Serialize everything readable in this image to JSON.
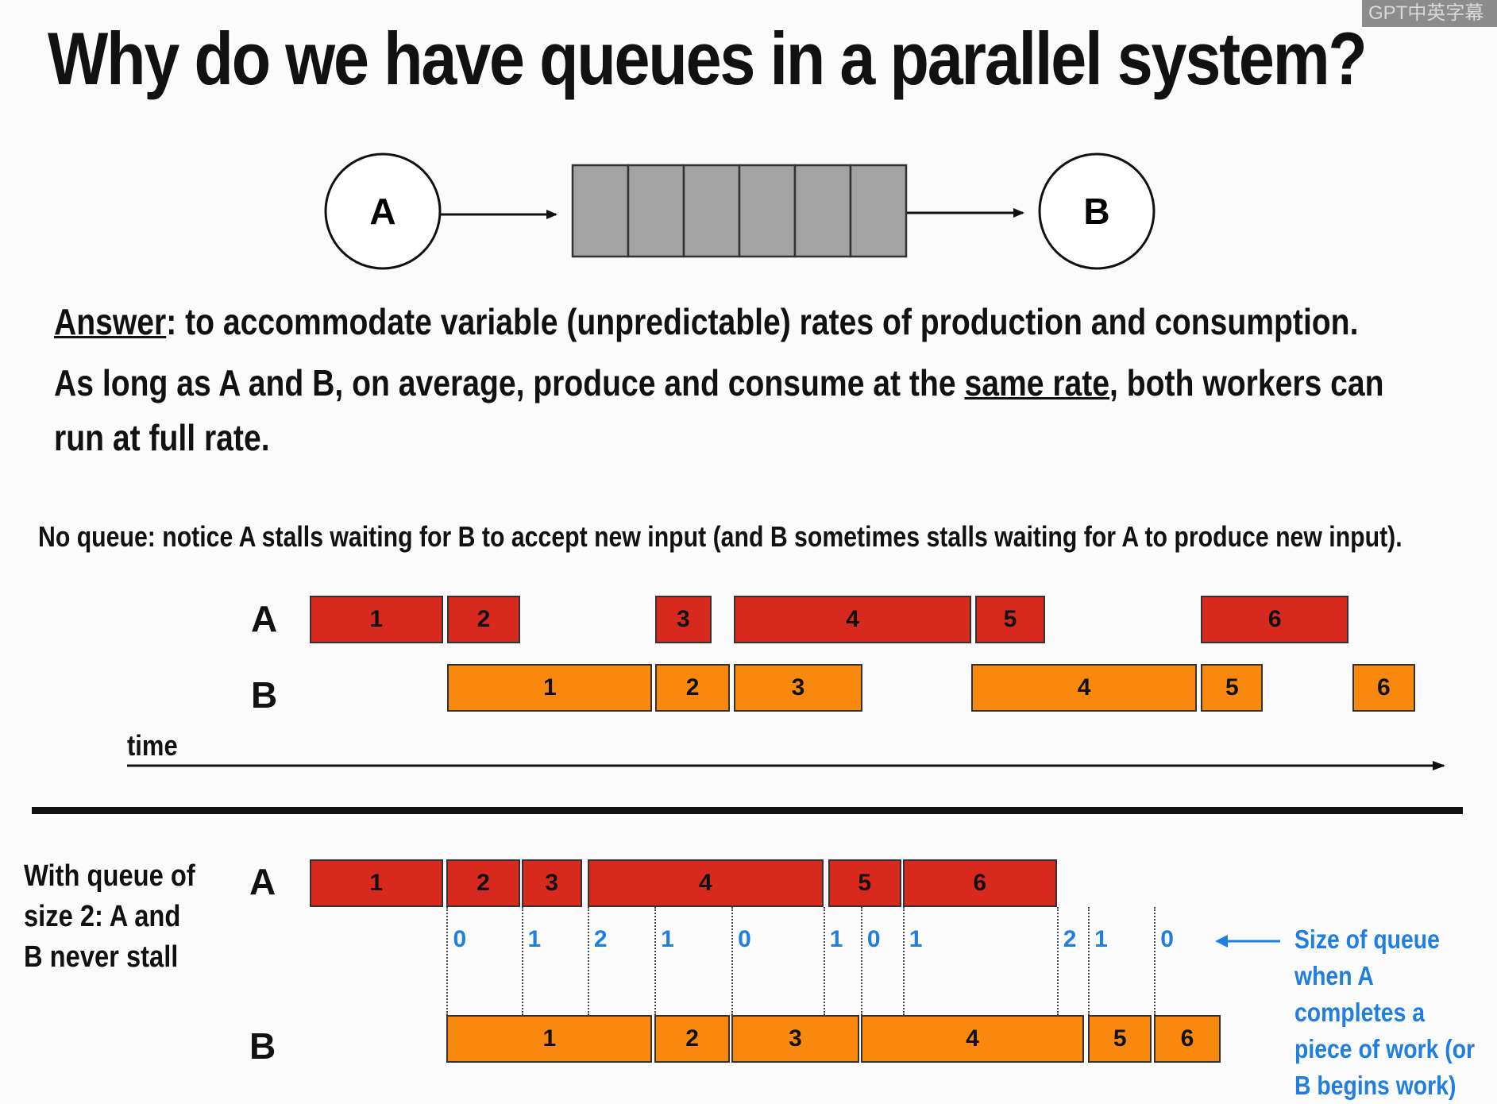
{
  "watermark": "GPT中英字幕",
  "title": "Why do we have queues in a parallel system?",
  "diagram": {
    "producer": "A",
    "consumer": "B",
    "queue_slots": 6
  },
  "answer": {
    "label": "Answer",
    "line1_rest": ": to accommodate variable (unpredictable) rates of production and consumption.",
    "line2_pre": "As long as A and B, on average, produce and consume at the ",
    "line2_underlined": "same rate",
    "line2_post": ", both workers can",
    "line3": "run at full rate."
  },
  "no_queue": {
    "caption": "No queue: notice A stalls waiting for B to accept new input (and B sometimes stalls waiting for A to produce new input).",
    "row_a": "A",
    "row_b": "B",
    "time_label": "time",
    "a_tasks": [
      {
        "label": "1",
        "start": 0,
        "end": 1.71
      },
      {
        "label": "2",
        "start": 1.77,
        "end": 2.7
      },
      {
        "label": "3",
        "start": 4.44,
        "end": 5.16
      },
      {
        "label": "4",
        "start": 5.45,
        "end": 8.5
      },
      {
        "label": "5",
        "start": 8.55,
        "end": 9.45
      },
      {
        "label": "6",
        "start": 11.45,
        "end": 13.35
      }
    ],
    "b_tasks": [
      {
        "label": "1",
        "start": 1.77,
        "end": 4.4
      },
      {
        "label": "2",
        "start": 4.44,
        "end": 5.4
      },
      {
        "label": "3",
        "start": 5.45,
        "end": 7.1
      },
      {
        "label": "4",
        "start": 8.5,
        "end": 11.4
      },
      {
        "label": "5",
        "start": 11.45,
        "end": 12.25
      },
      {
        "label": "6",
        "start": 13.4,
        "end": 14.2
      }
    ]
  },
  "with_queue": {
    "side_note": "With queue of size 2: A and B never stall",
    "row_a": "A",
    "row_b": "B",
    "a_tasks": [
      {
        "label": "1",
        "start": 0,
        "end": 1.71
      },
      {
        "label": "2",
        "start": 1.76,
        "end": 2.7
      },
      {
        "label": "3",
        "start": 2.72,
        "end": 3.5
      },
      {
        "label": "4",
        "start": 3.57,
        "end": 6.6
      },
      {
        "label": "5",
        "start": 6.66,
        "end": 7.6
      },
      {
        "label": "6",
        "start": 7.62,
        "end": 9.6
      }
    ],
    "b_tasks": [
      {
        "label": "1",
        "start": 1.76,
        "end": 4.4
      },
      {
        "label": "2",
        "start": 4.43,
        "end": 5.4
      },
      {
        "label": "3",
        "start": 5.42,
        "end": 7.06
      },
      {
        "label": "4",
        "start": 7.08,
        "end": 9.95
      },
      {
        "label": "5",
        "start": 10.0,
        "end": 10.82
      },
      {
        "label": "6",
        "start": 10.85,
        "end": 11.7
      }
    ],
    "queue_sizes": [
      {
        "value": "0",
        "t": 1.76
      },
      {
        "value": "1",
        "t": 2.72
      },
      {
        "value": "2",
        "t": 3.57
      },
      {
        "value": "1",
        "t": 4.43
      },
      {
        "value": "0",
        "t": 5.42
      },
      {
        "value": "1",
        "t": 6.6
      },
      {
        "value": "0",
        "t": 7.08
      },
      {
        "value": "1",
        "t": 7.62
      },
      {
        "value": "2",
        "t": 9.6
      },
      {
        "value": "1",
        "t": 10.0
      },
      {
        "value": "0",
        "t": 10.85
      }
    ],
    "note": "Size of queue when A completes a piece of work (or B begins work)"
  }
}
